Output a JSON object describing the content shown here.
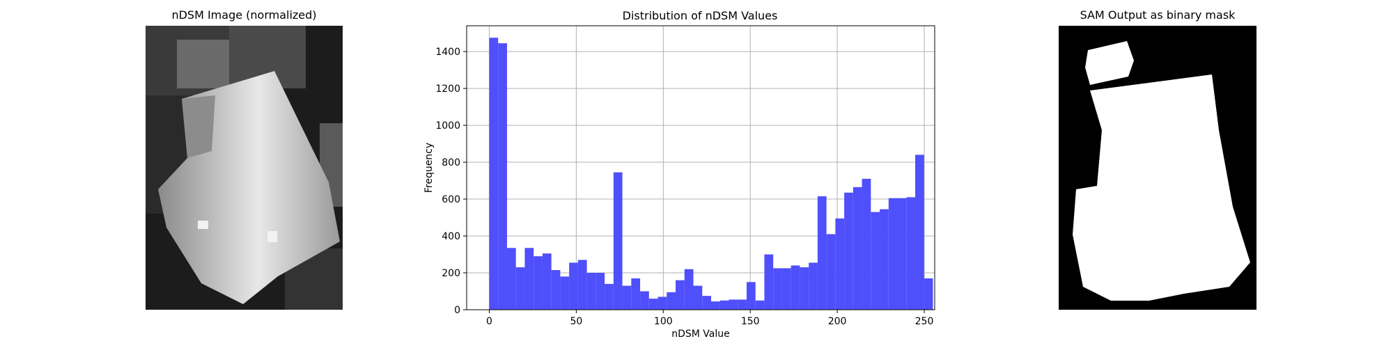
{
  "panels": {
    "left_title": "nDSM Image (normalized)",
    "right_title": "SAM Output as binary mask"
  },
  "chart_data": {
    "type": "bar",
    "title": "Distribution of nDSM Values",
    "xlabel": "nDSM Value",
    "ylabel": "Frequency",
    "xlim": [
      -13,
      256
    ],
    "ylim": [
      0,
      1540
    ],
    "xticks": [
      0,
      50,
      100,
      150,
      200,
      250
    ],
    "yticks": [
      0,
      200,
      400,
      600,
      800,
      1000,
      1200,
      1400
    ],
    "grid": true,
    "bar_color": "#4f4ffb",
    "bin_width": 5.1,
    "bin_start": 0,
    "values": [
      1475,
      1445,
      335,
      230,
      335,
      290,
      305,
      215,
      180,
      255,
      270,
      200,
      200,
      140,
      745,
      130,
      170,
      100,
      60,
      70,
      95,
      160,
      220,
      130,
      75,
      45,
      50,
      55,
      55,
      150,
      50,
      300,
      225,
      225,
      240,
      230,
      255,
      615,
      410,
      495,
      635,
      665,
      710,
      530,
      545,
      605,
      605,
      610,
      840,
      170
    ]
  }
}
